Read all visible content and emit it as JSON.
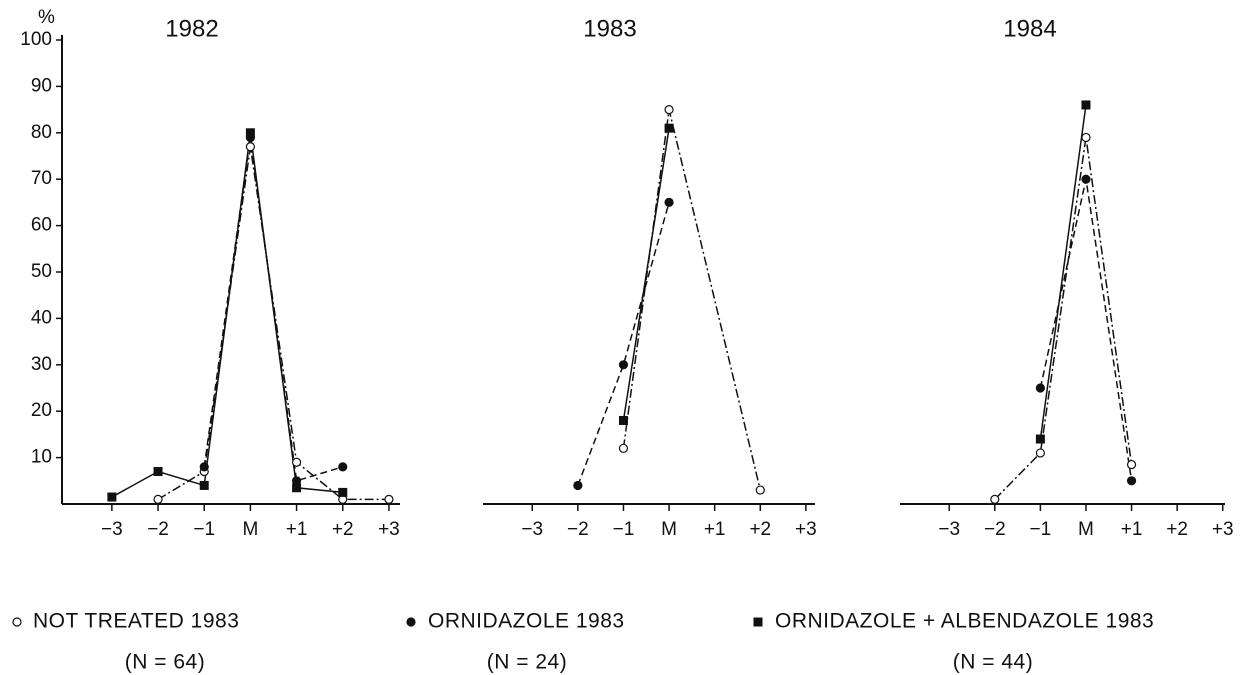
{
  "chart_data": [
    {
      "type": "line",
      "title": "1982",
      "y_unit": "%",
      "xlim": [
        -4.08,
        3.24
      ],
      "ylim": [
        0,
        100
      ],
      "xticks": [
        {
          "value": -3,
          "label": "−3"
        },
        {
          "value": -2,
          "label": "−2"
        },
        {
          "value": -1,
          "label": "−1"
        },
        {
          "value": 0,
          "label": "M"
        },
        {
          "value": 1,
          "label": "+1"
        },
        {
          "value": 2,
          "label": "+2"
        },
        {
          "value": 3,
          "label": "+3"
        }
      ],
      "yticks": [
        10,
        20,
        30,
        40,
        50,
        60,
        70,
        80,
        90,
        100
      ],
      "series": [
        {
          "marker": "circle-open",
          "line": "dash-dot",
          "color": "#111",
          "x": [
            -2,
            -1,
            0,
            1,
            2,
            3
          ],
          "values": [
            1,
            7,
            77,
            9,
            1,
            1
          ]
        },
        {
          "marker": "circle-filled",
          "line": "dashed",
          "color": "#111",
          "x": [
            -1,
            0,
            1,
            2
          ],
          "values": [
            8,
            79,
            5,
            8
          ]
        },
        {
          "marker": "square",
          "line": "solid",
          "color": "#111",
          "x": [
            -3,
            -2,
            -1,
            0,
            1,
            2
          ],
          "values": [
            1.5,
            7,
            4,
            80,
            3.5,
            2.5
          ]
        }
      ]
    },
    {
      "type": "line",
      "title": "1983",
      "xlim": [
        -4.08,
        3.2
      ],
      "ylim": [
        0,
        100
      ],
      "xticks": [
        {
          "value": -3,
          "label": "−3"
        },
        {
          "value": -2,
          "label": "−2"
        },
        {
          "value": -1,
          "label": "−1"
        },
        {
          "value": 0,
          "label": "M"
        },
        {
          "value": 1,
          "label": "+1"
        },
        {
          "value": 2,
          "label": "+2"
        },
        {
          "value": 3,
          "label": "+3"
        }
      ],
      "series": [
        {
          "marker": "circle-open",
          "line": "dash-dot",
          "color": "#111",
          "x": [
            -1,
            0,
            2
          ],
          "values": [
            12,
            85,
            3
          ]
        },
        {
          "marker": "circle-filled",
          "line": "dashed",
          "color": "#111",
          "x": [
            -2,
            -1,
            0
          ],
          "values": [
            4,
            30,
            65
          ]
        },
        {
          "marker": "square",
          "line": "solid",
          "color": "#111",
          "x": [
            -1,
            0
          ],
          "values": [
            18,
            81
          ]
        }
      ]
    },
    {
      "type": "line",
      "title": "1984",
      "xlim": [
        -4.08,
        3.05
      ],
      "ylim": [
        0,
        100
      ],
      "xticks": [
        {
          "value": -3,
          "label": "−3"
        },
        {
          "value": -2,
          "label": "−2"
        },
        {
          "value": -1,
          "label": "−1"
        },
        {
          "value": 0,
          "label": "M"
        },
        {
          "value": 1,
          "label": "+1"
        },
        {
          "value": 2,
          "label": "+2"
        },
        {
          "value": 3,
          "label": "+3"
        }
      ],
      "series": [
        {
          "marker": "circle-open",
          "line": "dash-dot",
          "color": "#111",
          "x": [
            -2,
            -1,
            0,
            1
          ],
          "values": [
            1,
            11,
            79,
            8.5
          ]
        },
        {
          "marker": "circle-filled",
          "line": "dashed",
          "color": "#111",
          "x": [
            -1,
            0,
            1
          ],
          "values": [
            25,
            70,
            5
          ]
        },
        {
          "marker": "square",
          "line": "solid",
          "color": "#111",
          "x": [
            -1,
            0
          ],
          "values": [
            14,
            86
          ]
        }
      ]
    }
  ],
  "legend": [
    {
      "marker": "circle-open",
      "label": "NOT TREATED 1983",
      "note": "(N = 64)"
    },
    {
      "marker": "circle-filled",
      "label": "ORNIDAZOLE 1983",
      "note": "(N = 24)"
    },
    {
      "marker": "square",
      "label": "ORNIDAZOLE + ALBENDAZOLE 1983",
      "note": "(N = 44)"
    }
  ]
}
